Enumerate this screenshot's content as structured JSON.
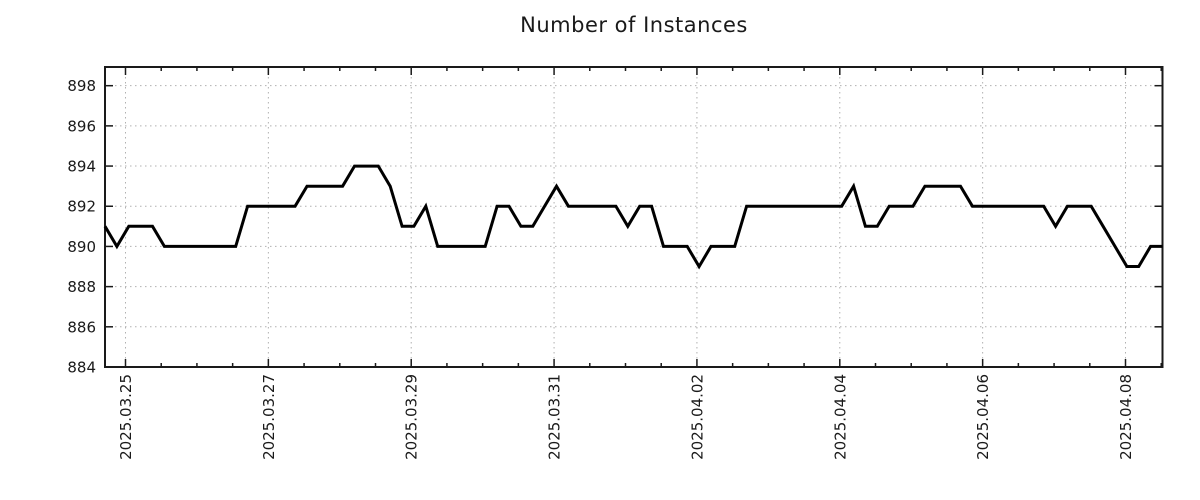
{
  "chart_data": {
    "type": "line",
    "title": "Number of Instances",
    "xlabel": "",
    "ylabel": "",
    "grid": true,
    "legend": "none",
    "line_color": "#000000",
    "grid_color": "#b0b0b0",
    "axis_color": "#1a1a1a",
    "text_color": "#1a1a1a",
    "background_color": "#ffffff",
    "ylim": [
      884,
      899
    ],
    "y_ticks": [
      898,
      896,
      894,
      892,
      890,
      888,
      886,
      884
    ],
    "x_tick_labels": [
      "2025.03.25",
      "2025.03.27",
      "2025.03.29",
      "2025.03.31",
      "2025.04.02",
      "2025.04.04",
      "2025.04.06",
      "2025.04.08"
    ],
    "x_tick_spacing_days": 2,
    "x_minor_tick_hours": 12,
    "x_start_day_offset_from_first_tick": -0.287,
    "x_step_days": 0.1667,
    "values": [
      891,
      890,
      891,
      891,
      891,
      890,
      890,
      890,
      890,
      890,
      890,
      890,
      892,
      892,
      892,
      892,
      892,
      893,
      893,
      893,
      893,
      894,
      894,
      894,
      893,
      891,
      891,
      892,
      890,
      890,
      890,
      890,
      890,
      892,
      892,
      891,
      891,
      892,
      893,
      892,
      892,
      892,
      892,
      892,
      891,
      892,
      892,
      890,
      890,
      890,
      889,
      890,
      890,
      890,
      892,
      892,
      892,
      892,
      892,
      892,
      892,
      892,
      892,
      893,
      891,
      891,
      892,
      892,
      892,
      893,
      893,
      893,
      893,
      892,
      892,
      892,
      892,
      892,
      892,
      892,
      891,
      892,
      892,
      892,
      891,
      890,
      889,
      889,
      890,
      890
    ]
  }
}
